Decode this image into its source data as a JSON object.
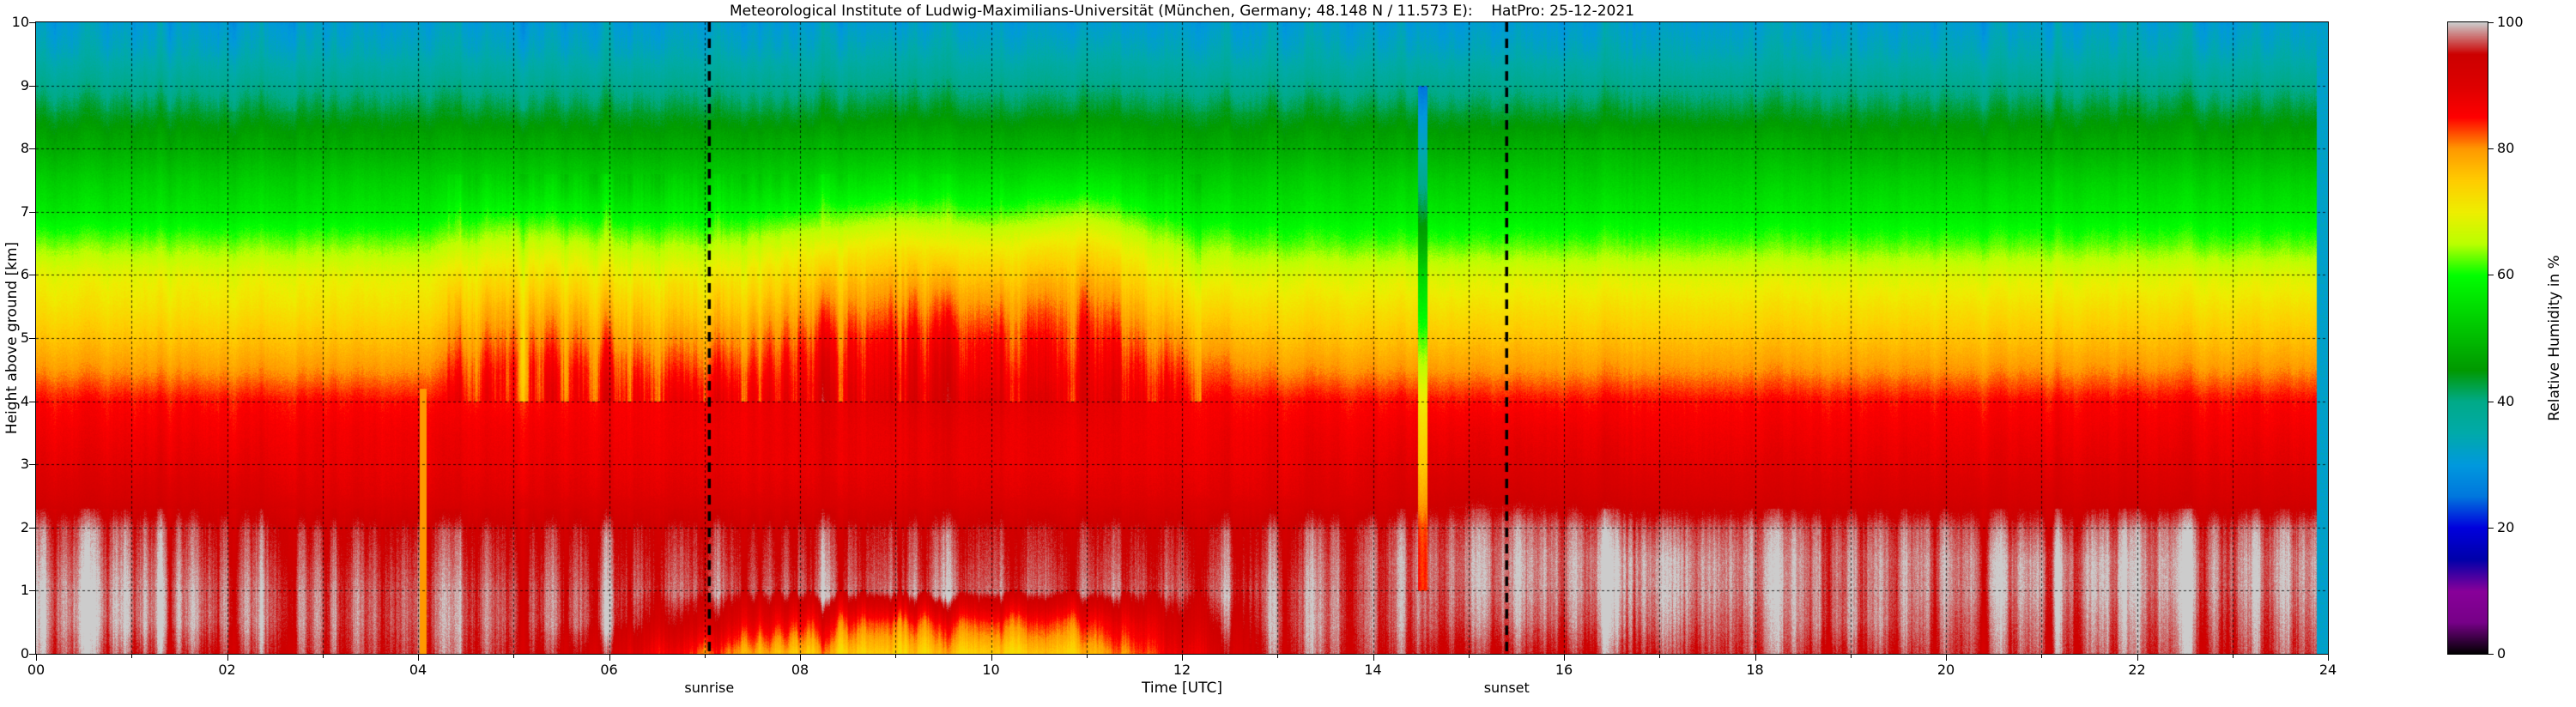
{
  "figure": {
    "background_color": "#ffffff",
    "frame_color": "#000000",
    "grid_color": "#000000"
  },
  "chart_data": {
    "type": "heatmap",
    "title": "Meteorological Institute of Ludwig-Maximilians-Universität (München, Germany; 48.148 N / 11.573 E):    HatPro: 25-12-2021",
    "x_axis": {
      "label": "Time [UTC]",
      "range": [
        0,
        24
      ],
      "major_ticks": [
        {
          "value": 0,
          "label": "00"
        },
        {
          "value": 2,
          "label": "02"
        },
        {
          "value": 4,
          "label": "04"
        },
        {
          "value": 6,
          "label": "06"
        },
        {
          "value": 8,
          "label": "08"
        },
        {
          "value": 10,
          "label": "10"
        },
        {
          "value": 12,
          "label": "12"
        },
        {
          "value": 14,
          "label": "14"
        },
        {
          "value": 16,
          "label": "16"
        },
        {
          "value": 18,
          "label": "18"
        },
        {
          "value": 20,
          "label": "20"
        },
        {
          "value": 22,
          "label": "22"
        },
        {
          "value": 24,
          "label": "24"
        }
      ],
      "minor_tick_values": [
        1,
        3,
        5,
        7,
        9,
        11,
        13,
        15,
        17,
        19,
        21,
        23
      ],
      "gridline_interval_hours": 1,
      "grid_dashed": true
    },
    "y_axis": {
      "label": "Height above ground [km]",
      "range": [
        0,
        10
      ],
      "ticks": [
        {
          "value": 0,
          "label": "0"
        },
        {
          "value": 1,
          "label": "1"
        },
        {
          "value": 2,
          "label": "2"
        },
        {
          "value": 3,
          "label": "3"
        },
        {
          "value": 4,
          "label": "4"
        },
        {
          "value": 5,
          "label": "5"
        },
        {
          "value": 6,
          "label": "6"
        },
        {
          "value": 7,
          "label": "7"
        },
        {
          "value": 8,
          "label": "8"
        },
        {
          "value": 9,
          "label": "9"
        },
        {
          "value": 10,
          "label": "10"
        }
      ],
      "gridline_interval_km": 1,
      "grid_dashed": true
    },
    "colorbar": {
      "label": "Relative Humidity in %",
      "range": [
        0,
        100
      ],
      "ticks": [
        {
          "value": 0,
          "label": "0"
        },
        {
          "value": 20,
          "label": "20"
        },
        {
          "value": 40,
          "label": "40"
        },
        {
          "value": 60,
          "label": "60"
        },
        {
          "value": 80,
          "label": "80"
        },
        {
          "value": 100,
          "label": "100"
        }
      ],
      "colormap": "nipy_spectral",
      "colormap_stops": [
        {
          "value": 0,
          "color": [
            0,
            0,
            0
          ]
        },
        {
          "value": 5,
          "color": [
            119,
            0,
            136
          ]
        },
        {
          "value": 10,
          "color": [
            136,
            0,
            153
          ]
        },
        {
          "value": 15,
          "color": [
            0,
            0,
            170
          ]
        },
        {
          "value": 20,
          "color": [
            0,
            0,
            221
          ]
        },
        {
          "value": 25,
          "color": [
            0,
            119,
            221
          ]
        },
        {
          "value": 30,
          "color": [
            0,
            153,
            221
          ]
        },
        {
          "value": 35,
          "color": [
            0,
            170,
            170
          ]
        },
        {
          "value": 40,
          "color": [
            0,
            170,
            136
          ]
        },
        {
          "value": 45,
          "color": [
            0,
            153,
            0
          ]
        },
        {
          "value": 50,
          "color": [
            0,
            187,
            0
          ]
        },
        {
          "value": 55,
          "color": [
            0,
            221,
            0
          ]
        },
        {
          "value": 60,
          "color": [
            0,
            255,
            0
          ]
        },
        {
          "value": 65,
          "color": [
            187,
            255,
            0
          ]
        },
        {
          "value": 70,
          "color": [
            238,
            238,
            0
          ]
        },
        {
          "value": 75,
          "color": [
            255,
            204,
            0
          ]
        },
        {
          "value": 80,
          "color": [
            255,
            153,
            0
          ]
        },
        {
          "value": 85,
          "color": [
            255,
            0,
            0
          ]
        },
        {
          "value": 90,
          "color": [
            221,
            0,
            0
          ]
        },
        {
          "value": 95,
          "color": [
            204,
            0,
            0
          ]
        },
        {
          "value": 100,
          "color": [
            204,
            204,
            204
          ]
        }
      ]
    },
    "annotations": {
      "sunrise": {
        "label": "sunrise",
        "time_utc": 7.05
      },
      "sunset": {
        "label": "sunset",
        "time_utc": 15.4
      }
    },
    "grid": {
      "times_utc": [
        0,
        1,
        2,
        3,
        4,
        5,
        6,
        7,
        8,
        9,
        10,
        11,
        12,
        13,
        14,
        15,
        16,
        17,
        18,
        19,
        20,
        21,
        22,
        23,
        24
      ],
      "heights_km": [
        0,
        0.5,
        1,
        1.5,
        2,
        2.5,
        3,
        3.5,
        4,
        4.5,
        5,
        5.5,
        6,
        6.5,
        7,
        7.5,
        8,
        8.5,
        9,
        9.5,
        10
      ],
      "rh_percent": [
        [
          98,
          97,
          96,
          96,
          96,
          96,
          93,
          82,
          76,
          74,
          74,
          76,
          88,
          96,
          96,
          96,
          96,
          96,
          96,
          96,
          96,
          96,
          96,
          96,
          96
        ],
        [
          99,
          99,
          98,
          97,
          97,
          97,
          97,
          92,
          86,
          82,
          83,
          84,
          93,
          97,
          97,
          98,
          98,
          98,
          97,
          98,
          97,
          97,
          97,
          97,
          97
        ],
        [
          99,
          99,
          98,
          97,
          97,
          97,
          97,
          97,
          97,
          97,
          97,
          97,
          97,
          97,
          97,
          99,
          99,
          99,
          98,
          98,
          98,
          98,
          98,
          98,
          98
        ],
        [
          98,
          98,
          97,
          96,
          96,
          96,
          96,
          96,
          96,
          96,
          96,
          96,
          96,
          96,
          97,
          99,
          99,
          99,
          98,
          98,
          98,
          98,
          98,
          98,
          98
        ],
        [
          97,
          97,
          96,
          95,
          95,
          95,
          95,
          95,
          95,
          95,
          95,
          95,
          95,
          95,
          96,
          98,
          98,
          97,
          97,
          97,
          97,
          96,
          97,
          97,
          97
        ],
        [
          92,
          92,
          92,
          90,
          90,
          90,
          90,
          90,
          90,
          90,
          90,
          90,
          90,
          90,
          91,
          94,
          93,
          92,
          92,
          92,
          92,
          92,
          92,
          92,
          92
        ],
        [
          89,
          89,
          89,
          88,
          88,
          88,
          88,
          88,
          88,
          88,
          88,
          88,
          88,
          88,
          89,
          90,
          90,
          89,
          89,
          89,
          89,
          89,
          89,
          89,
          89
        ],
        [
          87,
          87,
          87,
          87,
          87,
          87,
          87,
          87,
          88,
          88,
          88,
          88,
          87,
          87,
          87,
          88,
          88,
          87,
          87,
          87,
          87,
          87,
          87,
          87,
          87
        ],
        [
          85,
          85,
          85,
          85,
          85,
          85,
          86,
          87,
          88,
          89,
          89,
          89,
          86,
          85,
          85,
          85,
          85,
          85,
          85,
          85,
          85,
          85,
          85,
          85,
          85
        ],
        [
          80,
          80,
          80,
          80,
          80,
          85,
          84,
          83,
          86,
          87,
          86,
          87,
          83,
          80,
          80,
          80,
          80,
          80,
          80,
          80,
          80,
          80,
          80,
          80,
          80
        ],
        [
          76,
          76,
          76,
          76,
          76,
          82,
          80,
          79,
          83,
          85,
          84,
          85,
          79,
          76,
          76,
          76,
          76,
          76,
          76,
          76,
          76,
          76,
          76,
          76,
          76
        ],
        [
          72,
          72,
          72,
          72,
          72,
          78,
          76,
          74,
          79,
          81,
          80,
          82,
          74,
          72,
          72,
          72,
          72,
          72,
          72,
          72,
          72,
          72,
          72,
          72,
          72
        ],
        [
          69,
          69,
          69,
          69,
          69,
          73,
          71,
          70,
          74,
          77,
          75,
          78,
          69,
          68,
          68,
          68,
          68,
          68,
          68,
          68,
          68,
          68,
          68,
          68,
          68
        ],
        [
          63,
          63,
          63,
          63,
          63,
          67,
          65,
          64,
          68,
          71,
          69,
          72,
          64,
          62,
          62,
          62,
          62,
          62,
          62,
          62,
          62,
          62,
          62,
          62,
          62
        ],
        [
          57,
          57,
          57,
          57,
          57,
          60,
          58,
          58,
          60,
          63,
          61,
          64,
          58,
          57,
          57,
          57,
          57,
          57,
          57,
          57,
          57,
          57,
          57,
          57,
          57
        ],
        [
          53,
          53,
          53,
          53,
          53,
          54,
          53,
          53,
          54,
          56,
          55,
          57,
          53,
          53,
          53,
          53,
          53,
          53,
          53,
          53,
          53,
          53,
          53,
          53,
          53
        ],
        [
          48,
          48,
          48,
          48,
          48,
          49,
          48,
          48,
          49,
          50,
          49,
          50,
          48,
          48,
          48,
          48,
          49,
          49,
          49,
          48,
          48,
          48,
          48,
          48,
          48
        ],
        [
          44,
          44,
          44,
          44,
          44,
          44,
          44,
          44,
          44,
          45,
          44,
          45,
          44,
          44,
          44,
          44,
          44,
          44,
          44,
          44,
          44,
          44,
          44,
          44,
          44
        ],
        [
          39,
          39,
          39,
          39,
          39,
          39,
          39,
          39,
          39,
          40,
          39,
          40,
          39,
          39,
          39,
          39,
          39,
          39,
          39,
          39,
          39,
          39,
          39,
          39,
          39
        ],
        [
          34,
          34,
          34,
          34,
          34,
          34,
          34,
          34,
          34,
          35,
          34,
          35,
          34,
          34,
          34,
          34,
          34,
          34,
          34,
          34,
          34,
          34,
          34,
          34,
          34
        ],
        [
          31,
          31,
          31,
          31,
          31,
          31,
          31,
          31,
          31,
          31,
          31,
          31,
          31,
          31,
          31,
          31,
          31,
          31,
          31,
          31,
          31,
          31,
          31,
          31,
          31
        ]
      ]
    },
    "artifacts": [
      {
        "type": "dry-streak",
        "time_utc": 4.05,
        "halfwidth": 0.035,
        "height_range": [
          0,
          4.2
        ],
        "rh_cap": 80
      },
      {
        "type": "dry-streak",
        "time_utc": 14.52,
        "halfwidth": 0.05,
        "height_range": [
          1,
          9
        ],
        "rh_delta": -14
      },
      {
        "type": "missing-data",
        "time_range": [
          23.88,
          24.0
        ],
        "rh": 32
      }
    ]
  }
}
